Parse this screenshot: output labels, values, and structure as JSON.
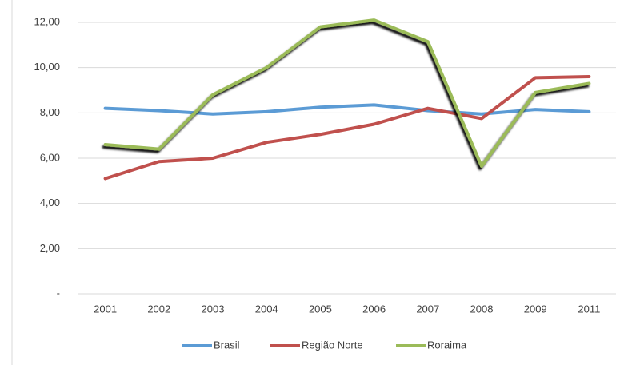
{
  "chart_data": {
    "type": "line",
    "categories": [
      "2001",
      "2002",
      "2003",
      "2004",
      "2005",
      "2006",
      "2007",
      "2008",
      "2009",
      "2011"
    ],
    "series": [
      {
        "name": "Brasil",
        "color": "#5b9bd5",
        "values": [
          8.2,
          8.1,
          7.95,
          8.05,
          8.25,
          8.35,
          8.1,
          7.95,
          8.15,
          8.05
        ]
      },
      {
        "name": "Região Norte",
        "color": "#c0504d",
        "values": [
          5.1,
          5.85,
          6.0,
          6.7,
          7.05,
          7.5,
          8.2,
          7.75,
          9.55,
          9.6
        ]
      },
      {
        "name": "Roraima",
        "color": "#9bbb59",
        "values": [
          6.6,
          6.4,
          8.8,
          10.0,
          11.8,
          12.1,
          11.15,
          5.65,
          8.9,
          9.3
        ]
      }
    ],
    "ylim": [
      0,
      12
    ],
    "yticks": [
      {
        "value": 0,
        "label": "-"
      },
      {
        "value": 2,
        "label": "2,00"
      },
      {
        "value": 4,
        "label": "4,00"
      },
      {
        "value": 6,
        "label": "6,00"
      },
      {
        "value": 8,
        "label": "8,00"
      },
      {
        "value": 10,
        "label": "10,00"
      },
      {
        "value": 12,
        "label": "12,00"
      }
    ],
    "grid": true,
    "legend": "bottom"
  }
}
